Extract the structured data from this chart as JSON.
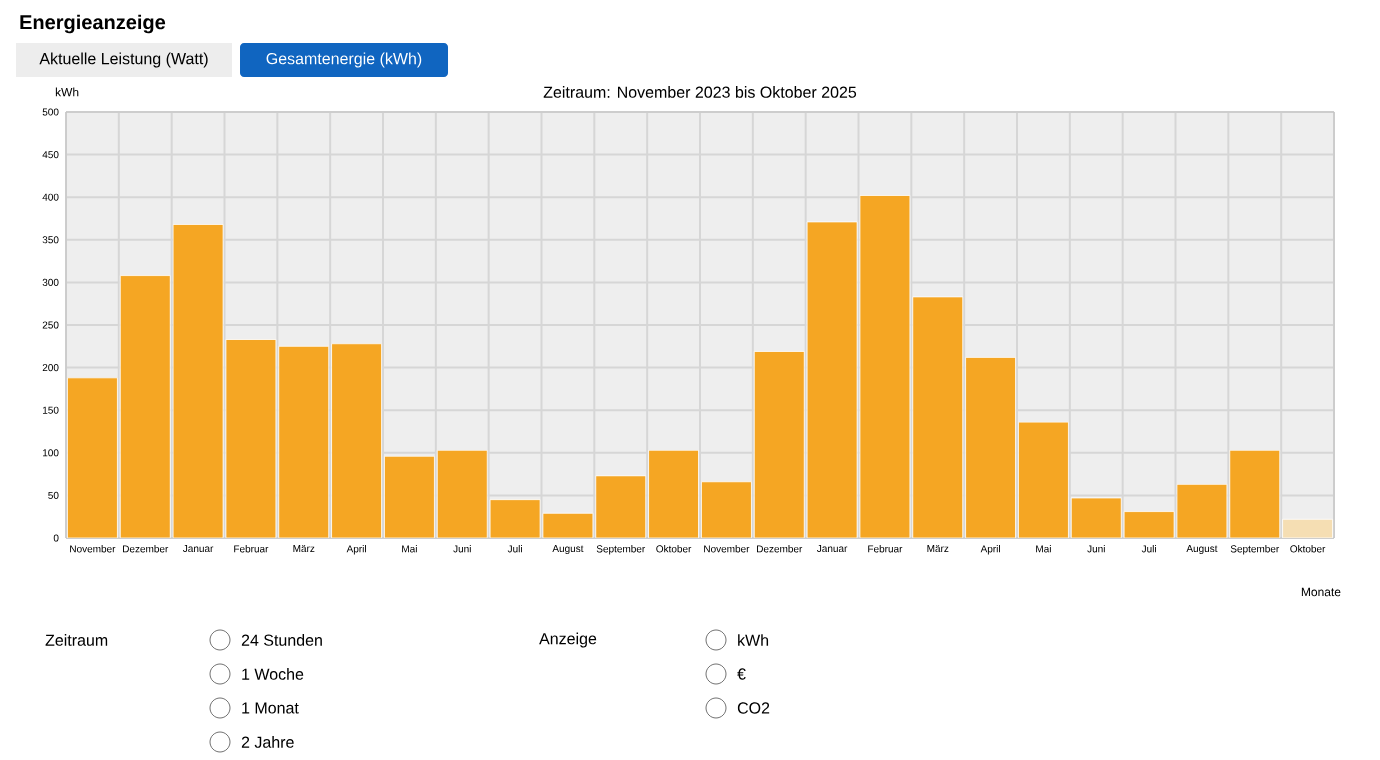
{
  "chart_data": {
    "type": "bar",
    "title": "Energieanzeige",
    "subtitle": "Zeitraum: November 2023 bis Oktober 2025",
    "xlabel": "Monate",
    "ylabel": "kWh",
    "categories": [
      "November",
      "Dezember",
      "Januar",
      "Februar",
      "März",
      "April",
      "Mai",
      "Juni",
      "Juli",
      "August",
      "September",
      "Oktober",
      "November",
      "Dezember",
      "Januar",
      "Februar",
      "März",
      "April",
      "Mai",
      "Juni",
      "Juli",
      "August",
      "September",
      "Oktober"
    ],
    "values": [
      188,
      308,
      368,
      233,
      225,
      228,
      96,
      103,
      45,
      29,
      73,
      103,
      66,
      219,
      371,
      402,
      283,
      212,
      136,
      47,
      31,
      63,
      103,
      22
    ],
    "colors": [
      "#f5a623",
      "#f5a623",
      "#f5a623",
      "#f5a623",
      "#f5a623",
      "#f5a623",
      "#f5a623",
      "#f5a623",
      "#f5a623",
      "#f5a623",
      "#f5a623",
      "#f5a623",
      "#f5a623",
      "#f5a623",
      "#f5a623",
      "#f5a623",
      "#f5a623",
      "#f5a623",
      "#f5a623",
      "#f5a623",
      "#f5a623",
      "#f5a623",
      "#f5a623",
      "#f5deb3"
    ],
    "ylim": [
      0,
      500
    ],
    "yticks": [
      0,
      50,
      100,
      150,
      200,
      250,
      300,
      350,
      400,
      450,
      500
    ],
    "grid": true,
    "annotations": [
      "Aktuelle Leistung (Watt)",
      "Gesamtenergie (kWh)",
      "Zeitraum",
      "24 Stunden",
      "1 Woche",
      "1 Monat",
      "2 Jahre",
      "Anzeige",
      "kWh",
      "€",
      "CO2"
    ]
  }
}
